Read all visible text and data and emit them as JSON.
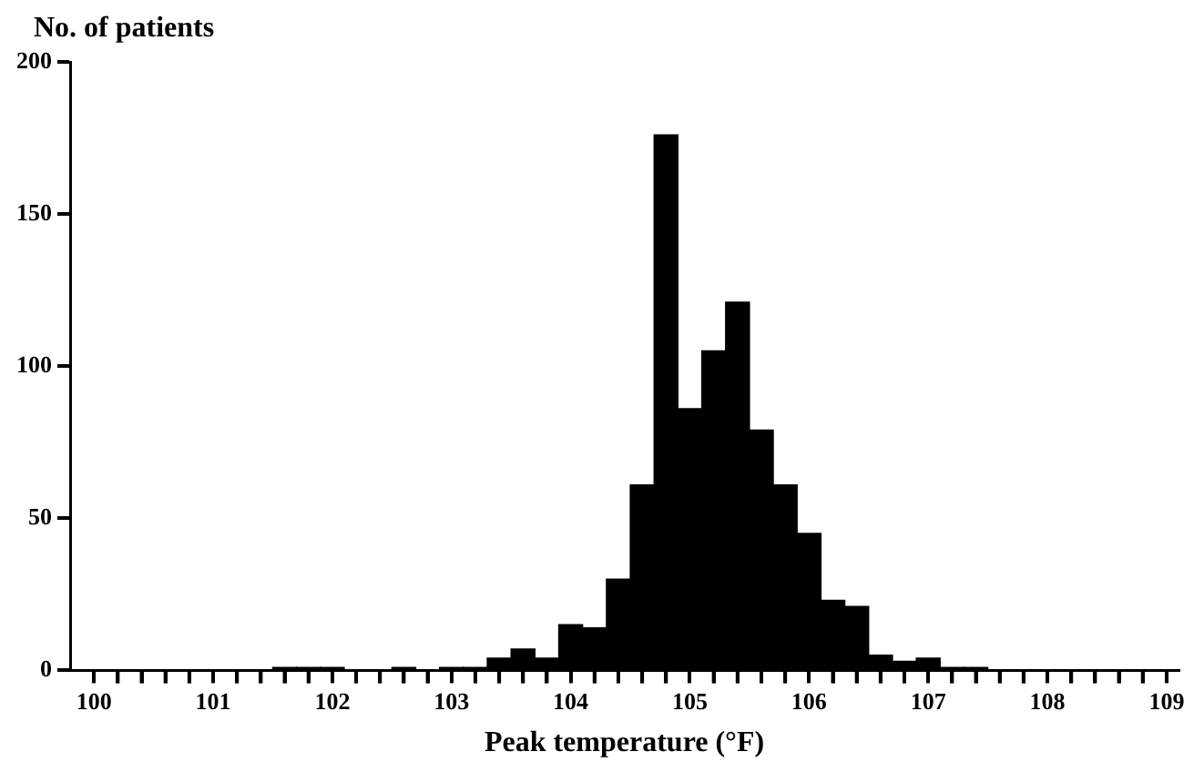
{
  "chart_data": {
    "type": "histogram",
    "xlabel": "Peak temperature (°F)",
    "ylabel": "No. of patients",
    "bins": [
      101.5,
      101.7,
      101.9,
      102.1,
      102.3,
      102.5,
      102.7,
      102.9,
      103.1,
      103.3,
      103.5,
      103.7,
      103.9,
      104.1,
      104.3,
      104.5,
      104.7,
      104.9,
      105.1,
      105.3,
      105.5,
      105.7,
      105.9,
      106.1,
      106.3,
      106.5,
      106.7,
      106.9,
      107.1,
      107.3,
      107.5
    ],
    "values": [
      1,
      1,
      1,
      0,
      0,
      1,
      0,
      1,
      1,
      4,
      7,
      4,
      15,
      14,
      30,
      61,
      176,
      86,
      105,
      121,
      79,
      61,
      45,
      23,
      21,
      5,
      3,
      4,
      1,
      1
    ],
    "color": "#000000",
    "xlim": [
      99.8,
      109.1
    ],
    "xticks": [
      100,
      {
        "value": 100.2,
        "label": null
      },
      {
        "value": 100.4,
        "label": null
      },
      {
        "value": 100.6,
        "label": null
      },
      {
        "value": 100.8,
        "label": null
      },
      101,
      {
        "value": 101.2,
        "label": null
      },
      {
        "value": 101.4,
        "label": null
      },
      {
        "value": 101.6,
        "label": null
      },
      {
        "value": 101.8,
        "label": null
      },
      102,
      {
        "value": 102.2,
        "label": null
      },
      {
        "value": 102.4,
        "label": null
      },
      {
        "value": 102.6,
        "label": null
      },
      {
        "value": 102.8,
        "label": null
      },
      103,
      {
        "value": 103.2,
        "label": null
      },
      {
        "value": 103.4,
        "label": null
      },
      {
        "value": 103.6,
        "label": null
      },
      {
        "value": 103.8,
        "label": null
      },
      104,
      {
        "value": 104.2,
        "label": null
      },
      {
        "value": 104.4,
        "label": null
      },
      {
        "value": 104.6,
        "label": null
      },
      {
        "value": 104.8,
        "label": null
      },
      105,
      {
        "value": 105.2,
        "label": null
      },
      {
        "value": 105.4,
        "label": null
      },
      {
        "value": 105.6,
        "label": null
      },
      {
        "value": 105.8,
        "label": null
      },
      106,
      {
        "value": 106.2,
        "label": null
      },
      {
        "value": 106.4,
        "label": null
      },
      {
        "value": 106.6,
        "label": null
      },
      {
        "value": 106.8,
        "label": null
      },
      107,
      {
        "value": 107.2,
        "label": null
      },
      {
        "value": 107.4,
        "label": null
      },
      {
        "value": 107.6,
        "label": null
      },
      {
        "value": 107.8,
        "label": null
      },
      108,
      {
        "value": 108.2,
        "label": null
      },
      {
        "value": 108.4,
        "label": null
      },
      {
        "value": 108.6,
        "label": null
      },
      {
        "value": 108.8,
        "label": null
      },
      109
    ],
    "ylim": [
      0,
      200
    ],
    "yticks": [
      0,
      50,
      100,
      150,
      200
    ],
    "grid": false,
    "legend": false
  }
}
